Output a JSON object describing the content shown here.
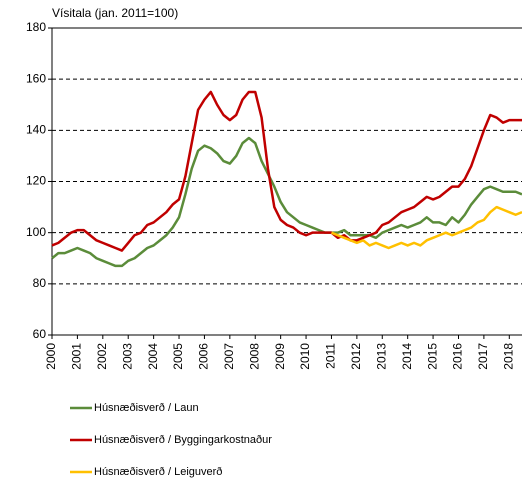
{
  "chart_data": {
    "type": "line",
    "title": "Vísitala (jan. 2011=100)",
    "x": [
      2000,
      2000.25,
      2000.5,
      2000.75,
      2001,
      2001.25,
      2001.5,
      2001.75,
      2002,
      2002.25,
      2002.5,
      2002.75,
      2003,
      2003.25,
      2003.5,
      2003.75,
      2004,
      2004.25,
      2004.5,
      2004.75,
      2005,
      2005.25,
      2005.5,
      2005.75,
      2006,
      2006.25,
      2006.5,
      2006.75,
      2007,
      2007.25,
      2007.5,
      2007.75,
      2008,
      2008.25,
      2008.5,
      2008.75,
      2009,
      2009.25,
      2009.5,
      2009.75,
      2010,
      2010.25,
      2010.5,
      2010.75,
      2011,
      2011.25,
      2011.5,
      2011.75,
      2012,
      2012.25,
      2012.5,
      2012.75,
      2013,
      2013.25,
      2013.5,
      2013.75,
      2014,
      2014.25,
      2014.5,
      2014.75,
      2015,
      2015.25,
      2015.5,
      2015.75,
      2016,
      2016.25,
      2016.5,
      2016.75,
      2017,
      2017.25,
      2017.5,
      2017.75,
      2018,
      2018.25,
      2018.5
    ],
    "series": [
      {
        "name": "Húsnæðisverð / Laun",
        "color": "#5b8c3a",
        "values": [
          90,
          92,
          92,
          93,
          94,
          93,
          92,
          90,
          89,
          88,
          87,
          87,
          89,
          90,
          92,
          94,
          95,
          97,
          99,
          102,
          106,
          115,
          125,
          132,
          134,
          133,
          131,
          128,
          127,
          130,
          135,
          137,
          135,
          128,
          123,
          118,
          112,
          108,
          106,
          104,
          103,
          102,
          101,
          100,
          100,
          100,
          101,
          99,
          99,
          99,
          99,
          98,
          100,
          101,
          102,
          103,
          102,
          103,
          104,
          106,
          104,
          104,
          103,
          106,
          104,
          107,
          111,
          114,
          117,
          118,
          117,
          116,
          116,
          116,
          115
        ]
      },
      {
        "name": "Húsnæðisverð / Byggingarkostnaður",
        "color": "#c00000",
        "values": [
          95,
          96,
          98,
          100,
          101,
          101,
          99,
          97,
          96,
          95,
          94,
          93,
          96,
          99,
          100,
          103,
          104,
          106,
          108,
          111,
          113,
          122,
          135,
          148,
          152,
          155,
          150,
          146,
          144,
          146,
          152,
          155,
          155,
          145,
          125,
          110,
          105,
          103,
          102,
          100,
          99,
          100,
          100,
          100,
          100,
          98,
          99,
          97,
          97,
          98,
          99,
          100,
          103,
          104,
          106,
          108,
          109,
          110,
          112,
          114,
          113,
          114,
          116,
          118,
          118,
          121,
          126,
          133,
          140,
          146,
          145,
          143,
          144,
          144,
          144
        ]
      },
      {
        "name": "Húsnæðisverð / Leiguverð",
        "color": "#ffc000",
        "values": [
          null,
          null,
          null,
          null,
          null,
          null,
          null,
          null,
          null,
          null,
          null,
          null,
          null,
          null,
          null,
          null,
          null,
          null,
          null,
          null,
          null,
          null,
          null,
          null,
          null,
          null,
          null,
          null,
          null,
          null,
          null,
          null,
          null,
          null,
          null,
          null,
          null,
          null,
          null,
          null,
          null,
          null,
          null,
          null,
          100,
          99,
          98,
          97,
          96,
          97,
          95,
          96,
          95,
          94,
          95,
          96,
          95,
          96,
          95,
          97,
          98,
          99,
          100,
          99,
          100,
          101,
          102,
          104,
          105,
          108,
          110,
          109,
          108,
          107,
          108
        ]
      }
    ],
    "xlim": [
      2000,
      2018.5
    ],
    "xticks": [
      2000,
      2001,
      2002,
      2003,
      2004,
      2005,
      2006,
      2007,
      2008,
      2009,
      2010,
      2011,
      2012,
      2013,
      2014,
      2015,
      2016,
      2017,
      2018
    ],
    "ylim": [
      60,
      180
    ],
    "yticks": [
      60,
      80,
      100,
      120,
      140,
      160,
      180
    ],
    "grid": true
  }
}
